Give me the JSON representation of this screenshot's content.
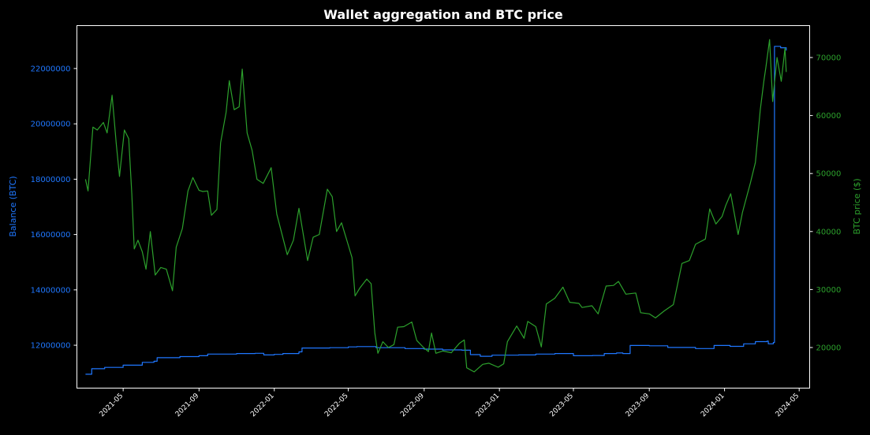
{
  "colors": {
    "background": "#000000",
    "axes": "#ffffff",
    "balance": "#1f77ff",
    "price": "#2ca02c",
    "title": "#ffffff"
  },
  "chart_data": {
    "type": "line",
    "title": "Wallet aggregation and BTC price",
    "xlabel": "",
    "grid": false,
    "x_range": [
      "2021-02-15",
      "2024-05-18"
    ],
    "x_ticks": [
      "2021-05",
      "2021-09",
      "2022-01",
      "2022-05",
      "2022-09",
      "2023-01",
      "2023-05",
      "2023-09",
      "2024-01",
      "2024-05"
    ],
    "left_axis": {
      "label": "Balance (BTC)",
      "ylim": [
        10450000,
        23550000
      ],
      "ticks": [
        12000000,
        14000000,
        16000000,
        18000000,
        20000000,
        22000000
      ]
    },
    "right_axis": {
      "label": "BTC price ($)",
      "ylim": [
        13000,
        75500
      ],
      "ticks": [
        20000,
        30000,
        40000,
        50000,
        60000,
        70000
      ]
    },
    "series": [
      {
        "name": "Balance (BTC)",
        "axis": "left",
        "step": true,
        "points": [
          [
            "2021-03-01",
            10950000
          ],
          [
            "2021-03-10",
            10950000
          ],
          [
            "2021-03-11",
            11150000
          ],
          [
            "2021-03-25",
            11150000
          ],
          [
            "2021-04-01",
            11200000
          ],
          [
            "2021-05-01",
            11280000
          ],
          [
            "2021-06-01",
            11380000
          ],
          [
            "2021-06-20",
            11420000
          ],
          [
            "2021-06-25",
            11550000
          ],
          [
            "2021-08-01",
            11590000
          ],
          [
            "2021-09-01",
            11620000
          ],
          [
            "2021-09-15",
            11680000
          ],
          [
            "2021-11-01",
            11700000
          ],
          [
            "2021-12-01",
            11710000
          ],
          [
            "2021-12-15",
            11650000
          ],
          [
            "2022-01-01",
            11670000
          ],
          [
            "2022-01-15",
            11700000
          ],
          [
            "2022-02-10",
            11760000
          ],
          [
            "2022-02-15",
            11900000
          ],
          [
            "2022-03-01",
            11900000
          ],
          [
            "2022-04-01",
            11910000
          ],
          [
            "2022-05-01",
            11940000
          ],
          [
            "2022-05-15",
            11950000
          ],
          [
            "2022-06-15",
            11910000
          ],
          [
            "2022-08-01",
            11880000
          ],
          [
            "2022-09-01",
            11860000
          ],
          [
            "2022-10-01",
            11830000
          ],
          [
            "2022-11-01",
            11820000
          ],
          [
            "2022-11-15",
            11660000
          ],
          [
            "2022-12-01",
            11600000
          ],
          [
            "2022-12-20",
            11640000
          ],
          [
            "2023-02-01",
            11650000
          ],
          [
            "2023-03-01",
            11680000
          ],
          [
            "2023-04-01",
            11700000
          ],
          [
            "2023-05-01",
            11620000
          ],
          [
            "2023-06-01",
            11630000
          ],
          [
            "2023-06-20",
            11700000
          ],
          [
            "2023-07-10",
            11720000
          ],
          [
            "2023-07-20",
            11700000
          ],
          [
            "2023-08-01",
            11990000
          ],
          [
            "2023-09-01",
            11980000
          ],
          [
            "2023-10-01",
            11920000
          ],
          [
            "2023-11-15",
            11880000
          ],
          [
            "2023-12-15",
            11990000
          ],
          [
            "2024-01-10",
            11960000
          ],
          [
            "2024-02-01",
            12050000
          ],
          [
            "2024-02-20",
            12130000
          ],
          [
            "2024-03-10",
            12150000
          ],
          [
            "2024-03-12",
            12050000
          ],
          [
            "2024-03-20",
            12100000
          ],
          [
            "2024-03-22",
            22800000
          ],
          [
            "2024-04-01",
            22750000
          ],
          [
            "2024-04-10",
            22650000
          ]
        ]
      },
      {
        "name": "BTC price ($)",
        "axis": "right",
        "step": false,
        "points": [
          [
            "2021-03-01",
            49000
          ],
          [
            "2021-03-05",
            47000
          ],
          [
            "2021-03-13",
            58000
          ],
          [
            "2021-03-20",
            57500
          ],
          [
            "2021-03-30",
            58800
          ],
          [
            "2021-04-05",
            57000
          ],
          [
            "2021-04-13",
            63500
          ],
          [
            "2021-04-20",
            55000
          ],
          [
            "2021-04-25",
            49500
          ],
          [
            "2021-05-03",
            57500
          ],
          [
            "2021-05-10",
            56000
          ],
          [
            "2021-05-15",
            46500
          ],
          [
            "2021-05-19",
            37000
          ],
          [
            "2021-05-25",
            38500
          ],
          [
            "2021-06-01",
            36500
          ],
          [
            "2021-06-07",
            33500
          ],
          [
            "2021-06-14",
            40000
          ],
          [
            "2021-06-22",
            32500
          ],
          [
            "2021-07-01",
            33800
          ],
          [
            "2021-07-10",
            33500
          ],
          [
            "2021-07-20",
            29800
          ],
          [
            "2021-07-26",
            37300
          ],
          [
            "2021-08-05",
            40500
          ],
          [
            "2021-08-14",
            47000
          ],
          [
            "2021-08-22",
            49300
          ],
          [
            "2021-09-01",
            47100
          ],
          [
            "2021-09-07",
            46900
          ],
          [
            "2021-09-15",
            47000
          ],
          [
            "2021-09-21",
            42800
          ],
          [
            "2021-09-30",
            43800
          ],
          [
            "2021-10-06",
            55300
          ],
          [
            "2021-10-15",
            60600
          ],
          [
            "2021-10-20",
            66000
          ],
          [
            "2021-10-28",
            61000
          ],
          [
            "2021-11-05",
            61500
          ],
          [
            "2021-11-10",
            68000
          ],
          [
            "2021-11-18",
            57000
          ],
          [
            "2021-11-26",
            54000
          ],
          [
            "2021-12-04",
            49000
          ],
          [
            "2021-12-14",
            48300
          ],
          [
            "2021-12-27",
            51000
          ],
          [
            "2022-01-05",
            43000
          ],
          [
            "2022-01-22",
            36000
          ],
          [
            "2022-02-01",
            38500
          ],
          [
            "2022-02-10",
            44000
          ],
          [
            "2022-02-24",
            35000
          ],
          [
            "2022-03-05",
            39000
          ],
          [
            "2022-03-15",
            39500
          ],
          [
            "2022-03-28",
            47300
          ],
          [
            "2022-04-05",
            46000
          ],
          [
            "2022-04-12",
            40000
          ],
          [
            "2022-04-20",
            41500
          ],
          [
            "2022-04-30",
            38000
          ],
          [
            "2022-05-07",
            35500
          ],
          [
            "2022-05-12",
            28900
          ],
          [
            "2022-05-20",
            30300
          ],
          [
            "2022-05-31",
            31800
          ],
          [
            "2022-06-07",
            31000
          ],
          [
            "2022-06-13",
            22500
          ],
          [
            "2022-06-18",
            19000
          ],
          [
            "2022-06-26",
            21000
          ],
          [
            "2022-07-05",
            20000
          ],
          [
            "2022-07-14",
            20500
          ],
          [
            "2022-07-20",
            23500
          ],
          [
            "2022-07-30",
            23600
          ],
          [
            "2022-08-12",
            24400
          ],
          [
            "2022-08-20",
            21200
          ],
          [
            "2022-08-31",
            20000
          ],
          [
            "2022-09-08",
            19300
          ],
          [
            "2022-09-13",
            22500
          ],
          [
            "2022-09-20",
            19000
          ],
          [
            "2022-10-01",
            19400
          ],
          [
            "2022-10-15",
            19100
          ],
          [
            "2022-10-28",
            20700
          ],
          [
            "2022-11-05",
            21300
          ],
          [
            "2022-11-09",
            16500
          ],
          [
            "2022-11-21",
            15800
          ],
          [
            "2022-12-05",
            17100
          ],
          [
            "2022-12-15",
            17300
          ],
          [
            "2022-12-30",
            16600
          ],
          [
            "2023-01-08",
            17200
          ],
          [
            "2023-01-14",
            21000
          ],
          [
            "2023-01-29",
            23700
          ],
          [
            "2023-02-10",
            21600
          ],
          [
            "2023-02-16",
            24500
          ],
          [
            "2023-03-01",
            23600
          ],
          [
            "2023-03-10",
            20100
          ],
          [
            "2023-03-18",
            27500
          ],
          [
            "2023-04-01",
            28500
          ],
          [
            "2023-04-14",
            30400
          ],
          [
            "2023-04-25",
            27800
          ],
          [
            "2023-05-10",
            27600
          ],
          [
            "2023-05-15",
            26900
          ],
          [
            "2023-05-31",
            27200
          ],
          [
            "2023-06-10",
            25800
          ],
          [
            "2023-06-23",
            30600
          ],
          [
            "2023-07-05",
            30700
          ],
          [
            "2023-07-13",
            31400
          ],
          [
            "2023-07-25",
            29200
          ],
          [
            "2023-08-10",
            29400
          ],
          [
            "2023-08-18",
            26000
          ],
          [
            "2023-09-01",
            25800
          ],
          [
            "2023-09-11",
            25100
          ],
          [
            "2023-09-25",
            26300
          ],
          [
            "2023-10-10",
            27400
          ],
          [
            "2023-10-24",
            34500
          ],
          [
            "2023-11-05",
            35000
          ],
          [
            "2023-11-15",
            37800
          ],
          [
            "2023-12-01",
            38700
          ],
          [
            "2023-12-08",
            43900
          ],
          [
            "2023-12-18",
            41300
          ],
          [
            "2023-12-28",
            42600
          ],
          [
            "2024-01-03",
            44500
          ],
          [
            "2024-01-11",
            46500
          ],
          [
            "2024-01-23",
            39500
          ],
          [
            "2024-01-30",
            43300
          ],
          [
            "2024-02-12",
            48400
          ],
          [
            "2024-02-20",
            51900
          ],
          [
            "2024-02-28",
            61000
          ],
          [
            "2024-03-05",
            66100
          ],
          [
            "2024-03-08",
            68300
          ],
          [
            "2024-03-14",
            73100
          ],
          [
            "2024-03-19",
            62400
          ],
          [
            "2024-03-26",
            70000
          ],
          [
            "2024-04-02",
            65900
          ],
          [
            "2024-04-08",
            71600
          ],
          [
            "2024-04-10",
            67500
          ]
        ]
      }
    ]
  }
}
